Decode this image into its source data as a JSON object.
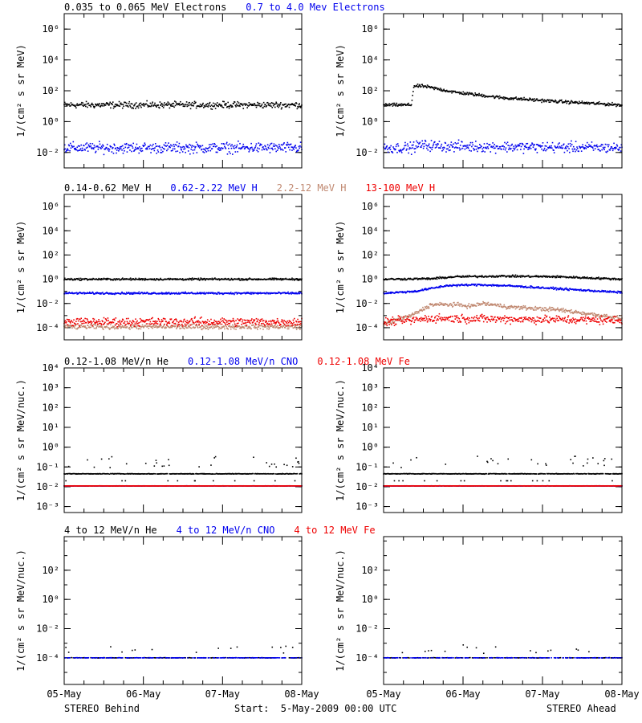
{
  "colors": {
    "black": "#000000",
    "blue": "#0000ee",
    "tan": "#c08870",
    "red": "#ee0000"
  },
  "footer": {
    "left": "STEREO Behind",
    "center": "Start:  5-May-2009 00:00 UTC",
    "right": "STEREO Ahead"
  },
  "chart_data": [
    {
      "type": "scatter",
      "title_entries": [
        {
          "text": "0.035 to 0.065 MeV Electrons",
          "color": "#000000"
        },
        {
          "text": "0.7 to 4.0 Mev Electrons",
          "color": "#0000ee"
        }
      ],
      "ylabel": "1/(cm² s sr MeV)",
      "yscale": "log",
      "yticks": [
        "10⁻²",
        "10⁰",
        "10²",
        "10⁴",
        "10⁶"
      ],
      "ylim": [
        0.001,
        10000000
      ],
      "xlim": [
        "2009-05-05",
        "2009-05-08"
      ],
      "xticks": [
        "05-May",
        "06-May",
        "07-May",
        "08-May"
      ],
      "panels": [
        {
          "name": "STEREO Behind",
          "series": [
            {
              "name": "0.035 to 0.065 MeV Electrons",
              "color": "#000000",
              "profile": [
                [
                  0,
                  12
                ],
                [
                  3,
                  12
                ]
              ],
              "scatter": 0.3
            },
            {
              "name": "0.7 to 4.0 Mev Electrons",
              "color": "#0000ee",
              "profile": [
                [
                  0,
                  0.02
                ],
                [
                  3,
                  0.02
                ]
              ],
              "scatter": 0.5
            }
          ]
        },
        {
          "name": "STEREO Ahead",
          "series": [
            {
              "name": "0.035 to 0.065 MeV Electrons",
              "color": "#000000",
              "profile": [
                [
                  0,
                  12
                ],
                [
                  0.35,
                  12
                ],
                [
                  0.38,
                  200
                ],
                [
                  0.5,
                  200
                ],
                [
                  0.9,
                  80
                ],
                [
                  1.5,
                  35
                ],
                [
                  2.2,
                  20
                ],
                [
                  3,
                  12
                ]
              ],
              "scatter": 0.15
            },
            {
              "name": "0.7 to 4.0 Mev Electrons",
              "color": "#0000ee",
              "profile": [
                [
                  0,
                  0.02
                ],
                [
                  0.35,
                  0.02
                ],
                [
                  0.45,
                  0.03
                ],
                [
                  0.8,
                  0.025
                ],
                [
                  3,
                  0.02
                ]
              ],
              "scatter": 0.5
            }
          ]
        }
      ]
    },
    {
      "type": "scatter",
      "title_entries": [
        {
          "text": "0.14-0.62 MeV H",
          "color": "#000000"
        },
        {
          "text": "0.62-2.22 MeV H",
          "color": "#0000ee"
        },
        {
          "text": "2.2-12 MeV H",
          "color": "#c08870"
        },
        {
          "text": "13-100 MeV H",
          "color": "#ee0000"
        }
      ],
      "ylabel": "1/(cm² s sr MeV)",
      "yscale": "log",
      "yticks": [
        "10⁻⁴",
        "10⁻²",
        "10⁰",
        "10²",
        "10⁴",
        "10⁶"
      ],
      "ylim": [
        1e-05,
        10000000
      ],
      "xlim": [
        "2009-05-05",
        "2009-05-08"
      ],
      "xticks": [
        "05-May",
        "06-May",
        "07-May",
        "08-May"
      ],
      "panels": [
        {
          "name": "STEREO Behind",
          "series": [
            {
              "name": "0.14-0.62 MeV H",
              "color": "#000000",
              "profile": [
                [
                  0,
                  1
                ],
                [
                  3,
                  1
                ]
              ],
              "scatter": 0.12
            },
            {
              "name": "0.62-2.22 MeV H",
              "color": "#0000ee",
              "profile": [
                [
                  0,
                  0.07
                ],
                [
                  3,
                  0.07
                ]
              ],
              "scatter": 0.12
            },
            {
              "name": "2.2-12 MeV H",
              "color": "#c08870",
              "profile": [
                [
                  0,
                  0.00012
                ],
                [
                  3,
                  0.00012
                ]
              ],
              "scatter": 0.3
            },
            {
              "name": "13-100 MeV H",
              "color": "#ee0000",
              "profile": [
                [
                  0,
                  0.0003
                ],
                [
                  3,
                  0.0003
                ]
              ],
              "scatter": 0.5
            }
          ]
        },
        {
          "name": "STEREO Ahead",
          "series": [
            {
              "name": "0.14-0.62 MeV H",
              "color": "#000000",
              "profile": [
                [
                  0,
                  1
                ],
                [
                  0.6,
                  1.1
                ],
                [
                  0.9,
                  1.6
                ],
                [
                  1.5,
                  1.8
                ],
                [
                  2.2,
                  1.6
                ],
                [
                  3,
                  1
                ]
              ],
              "scatter": 0.12
            },
            {
              "name": "0.62-2.22 MeV H",
              "color": "#0000ee",
              "profile": [
                [
                  0,
                  0.07
                ],
                [
                  0.4,
                  0.1
                ],
                [
                  0.8,
                  0.3
                ],
                [
                  1.2,
                  0.35
                ],
                [
                  1.6,
                  0.28
                ],
                [
                  2.3,
                  0.15
                ],
                [
                  3,
                  0.08
                ]
              ],
              "scatter": 0.12
            },
            {
              "name": "2.2-12 MeV H",
              "color": "#c08870",
              "profile": [
                [
                  0,
                  0.0002
                ],
                [
                  0.35,
                  0.001
                ],
                [
                  0.6,
                  0.008
                ],
                [
                  0.9,
                  0.008
                ],
                [
                  1.1,
                  0.006
                ],
                [
                  1.25,
                  0.01
                ],
                [
                  1.6,
                  0.005
                ],
                [
                  2.2,
                  0.003
                ],
                [
                  3,
                  0.0006
                ]
              ],
              "scatter": 0.25
            },
            {
              "name": "13-100 MeV H",
              "color": "#ee0000",
              "profile": [
                [
                  0,
                  0.0003
                ],
                [
                  0.35,
                  0.0004
                ],
                [
                  0.6,
                  0.0006
                ],
                [
                  3,
                  0.0004
                ]
              ],
              "scatter": 0.5
            }
          ]
        }
      ]
    },
    {
      "type": "scatter",
      "title_entries": [
        {
          "text": "0.12-1.08 MeV/n He",
          "color": "#000000"
        },
        {
          "text": "0.12-1.08 MeV/n CNO",
          "color": "#0000ee"
        },
        {
          "text": "0.12-1.08 MeV Fe",
          "color": "#ee0000"
        }
      ],
      "ylabel": "1/(cm² s sr MeV/nuc.)",
      "yscale": "log",
      "yticks": [
        "10⁻³",
        "10⁻²",
        "10⁻¹",
        "10⁰",
        "10¹",
        "10²",
        "10³",
        "10⁴"
      ],
      "ylim": [
        0.0005,
        10000
      ],
      "xlim": [
        "2009-05-05",
        "2009-05-08"
      ],
      "xticks": [
        "05-May",
        "06-May",
        "07-May",
        "08-May"
      ],
      "panels": [
        {
          "name": "STEREO Behind",
          "series": [
            {
              "name": "0.12-1.08 MeV/n He",
              "color": "#000000",
              "profile": [
                [
                  0,
                  0.045
                ],
                [
                  3,
                  0.045
                ]
              ],
              "scatter": 0.02,
              "extra_above": [
                0.1,
                0.6
              ],
              "extra_below": 0.02
            },
            {
              "name": "0.12-1.08 MeV/n CNO",
              "color": "#0000ee",
              "profile": [
                [
                  0,
                  0.011
                ],
                [
                  3,
                  0.011
                ]
              ],
              "scatter": 0.01
            },
            {
              "name": "0.12-1.08 MeV Fe",
              "color": "#ee0000",
              "profile": [
                [
                  0,
                  0.011
                ],
                [
                  3,
                  0.011
                ]
              ],
              "scatter": 0.01
            }
          ]
        },
        {
          "name": "STEREO Ahead",
          "series": [
            {
              "name": "0.12-1.08 MeV/n He",
              "color": "#000000",
              "profile": [
                [
                  0,
                  0.045
                ],
                [
                  3,
                  0.045
                ]
              ],
              "scatter": 0.02,
              "extra_above": [
                0.12,
                0.8
              ],
              "extra_below": 0.02
            },
            {
              "name": "0.12-1.08 MeV/n CNO",
              "color": "#0000ee",
              "profile": [
                [
                  0,
                  0.011
                ],
                [
                  3,
                  0.011
                ]
              ],
              "scatter": 0.01
            },
            {
              "name": "0.12-1.08 MeV Fe",
              "color": "#ee0000",
              "profile": [
                [
                  0,
                  0.011
                ],
                [
                  3,
                  0.011
                ]
              ],
              "scatter": 0.01
            }
          ]
        }
      ]
    },
    {
      "type": "scatter",
      "title_entries": [
        {
          "text": "4 to 12 MeV/n He",
          "color": "#000000"
        },
        {
          "text": "4 to 12 MeV/n CNO",
          "color": "#0000ee"
        },
        {
          "text": "4 to 12 MeV Fe",
          "color": "#ee0000"
        }
      ],
      "ylabel": "1/(cm² s sr MeV/nuc.)",
      "yscale": "log",
      "yticks": [
        "10⁻⁴",
        "10⁻²",
        "10⁰",
        "10²"
      ],
      "ylim": [
        1.5e-06,
        20000
      ],
      "xlim": [
        "2009-05-05",
        "2009-05-08"
      ],
      "xticks": [
        "05-May",
        "06-May",
        "07-May",
        "08-May"
      ],
      "panels": [
        {
          "name": "STEREO Behind",
          "series": [
            {
              "name": "4 to 12 MeV/n He",
              "color": "#000000",
              "profile": [
                [
                  0,
                  0.0001
                ],
                [
                  3,
                  0.0001
                ]
              ],
              "scatter": 0.02,
              "sparse": true,
              "extra_above": [
                0.06,
                0.2
              ]
            },
            {
              "name": "4 to 12 MeV/n CNO",
              "color": "#0000ee",
              "profile": [
                [
                  0,
                  0.0001
                ],
                [
                  3,
                  0.0001
                ]
              ],
              "scatter": 0.01,
              "sparse": true
            }
          ]
        },
        {
          "name": "STEREO Ahead",
          "series": [
            {
              "name": "4 to 12 MeV/n He",
              "color": "#000000",
              "profile": [
                [
                  0,
                  0.0001
                ],
                [
                  3,
                  0.0001
                ]
              ],
              "scatter": 0.02,
              "sparse": true,
              "extra_above": [
                0.1,
                0.3
              ]
            },
            {
              "name": "4 to 12 MeV/n CNO",
              "color": "#0000ee",
              "profile": [
                [
                  0,
                  0.0001
                ],
                [
                  3,
                  0.0001
                ]
              ],
              "scatter": 0.01,
              "sparse": true
            }
          ]
        }
      ]
    }
  ]
}
